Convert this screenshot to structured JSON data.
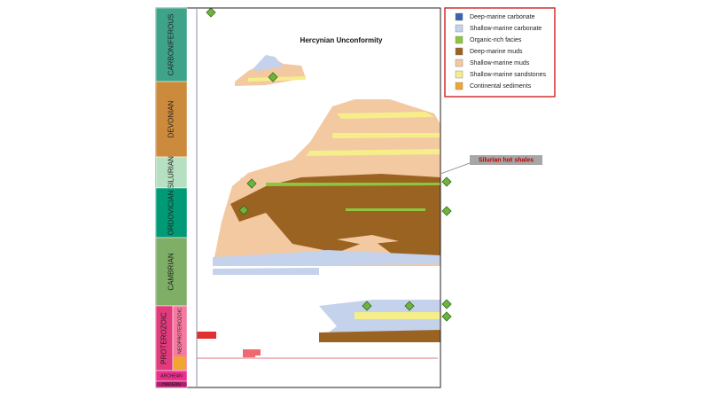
{
  "title": "Hercynian Unconformity",
  "callout": "Silurian hot shales",
  "periods": [
    "CARBONIFEROUS",
    "DEVONIAN",
    "SILURIAN",
    "ORDOVICIAN",
    "CAMBRIAN",
    "PROTEROZOIC",
    "ARCHEAN",
    "HADEAN"
  ],
  "subperiod": "NEOPROTEROZOIC",
  "legend": [
    {
      "label": "Deep-marine carbonate",
      "color": "#3a63b0"
    },
    {
      "label": "Shallow-marine carbonate",
      "color": "#c4d2ec"
    },
    {
      "label": "Organic-rich facies",
      "color": "#8cc63f"
    },
    {
      "label": "Deep-marine muds",
      "color": "#9a6322"
    },
    {
      "label": "Shallow-marine muds",
      "color": "#f3c9a2"
    },
    {
      "label": "Shallow-marine sandstones",
      "color": "#f5ee8a"
    },
    {
      "label": "Continental sediments",
      "color": "#f2a531"
    }
  ]
}
